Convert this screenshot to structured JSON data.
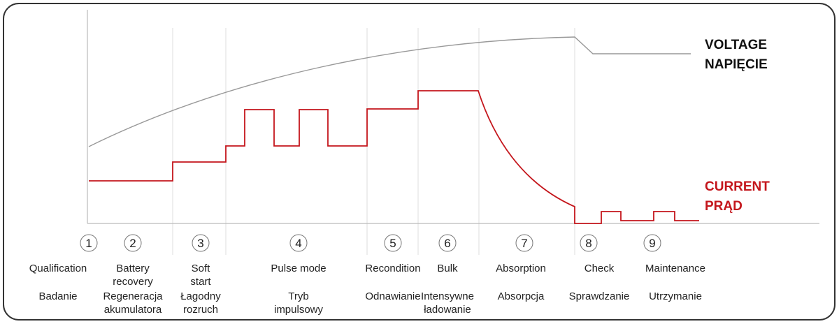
{
  "legend": {
    "voltage": [
      "VOLTAGE",
      "NAPIĘCIE"
    ],
    "current": [
      "CURRENT",
      "PRĄD"
    ]
  },
  "stages": [
    {
      "number": "1",
      "en": [
        "Qualification"
      ],
      "pl": [
        "Badanie"
      ]
    },
    {
      "number": "2",
      "en": [
        "Battery",
        "recovery"
      ],
      "pl": [
        "Regeneracja",
        "akumulatora"
      ]
    },
    {
      "number": "3",
      "en": [
        "Soft",
        "start"
      ],
      "pl": [
        "Łagodny",
        "rozruch"
      ]
    },
    {
      "number": "4",
      "en": [
        "Pulse mode"
      ],
      "pl": [
        "Tryb",
        "impulsowy"
      ]
    },
    {
      "number": "5",
      "en": [
        "Recondition"
      ],
      "pl": [
        "Odnawianie"
      ]
    },
    {
      "number": "6",
      "en": [
        "Bulk"
      ],
      "pl": [
        "Intensywne",
        "ładowanie"
      ]
    },
    {
      "number": "7",
      "en": [
        "Absorption"
      ],
      "pl": [
        "Absorpcja"
      ]
    },
    {
      "number": "8",
      "en": [
        "Check"
      ],
      "pl": [
        "Sprawdzanie"
      ]
    },
    {
      "number": "9",
      "en": [
        "Maintenance"
      ],
      "pl": [
        "Utrzymanie"
      ]
    }
  ]
}
